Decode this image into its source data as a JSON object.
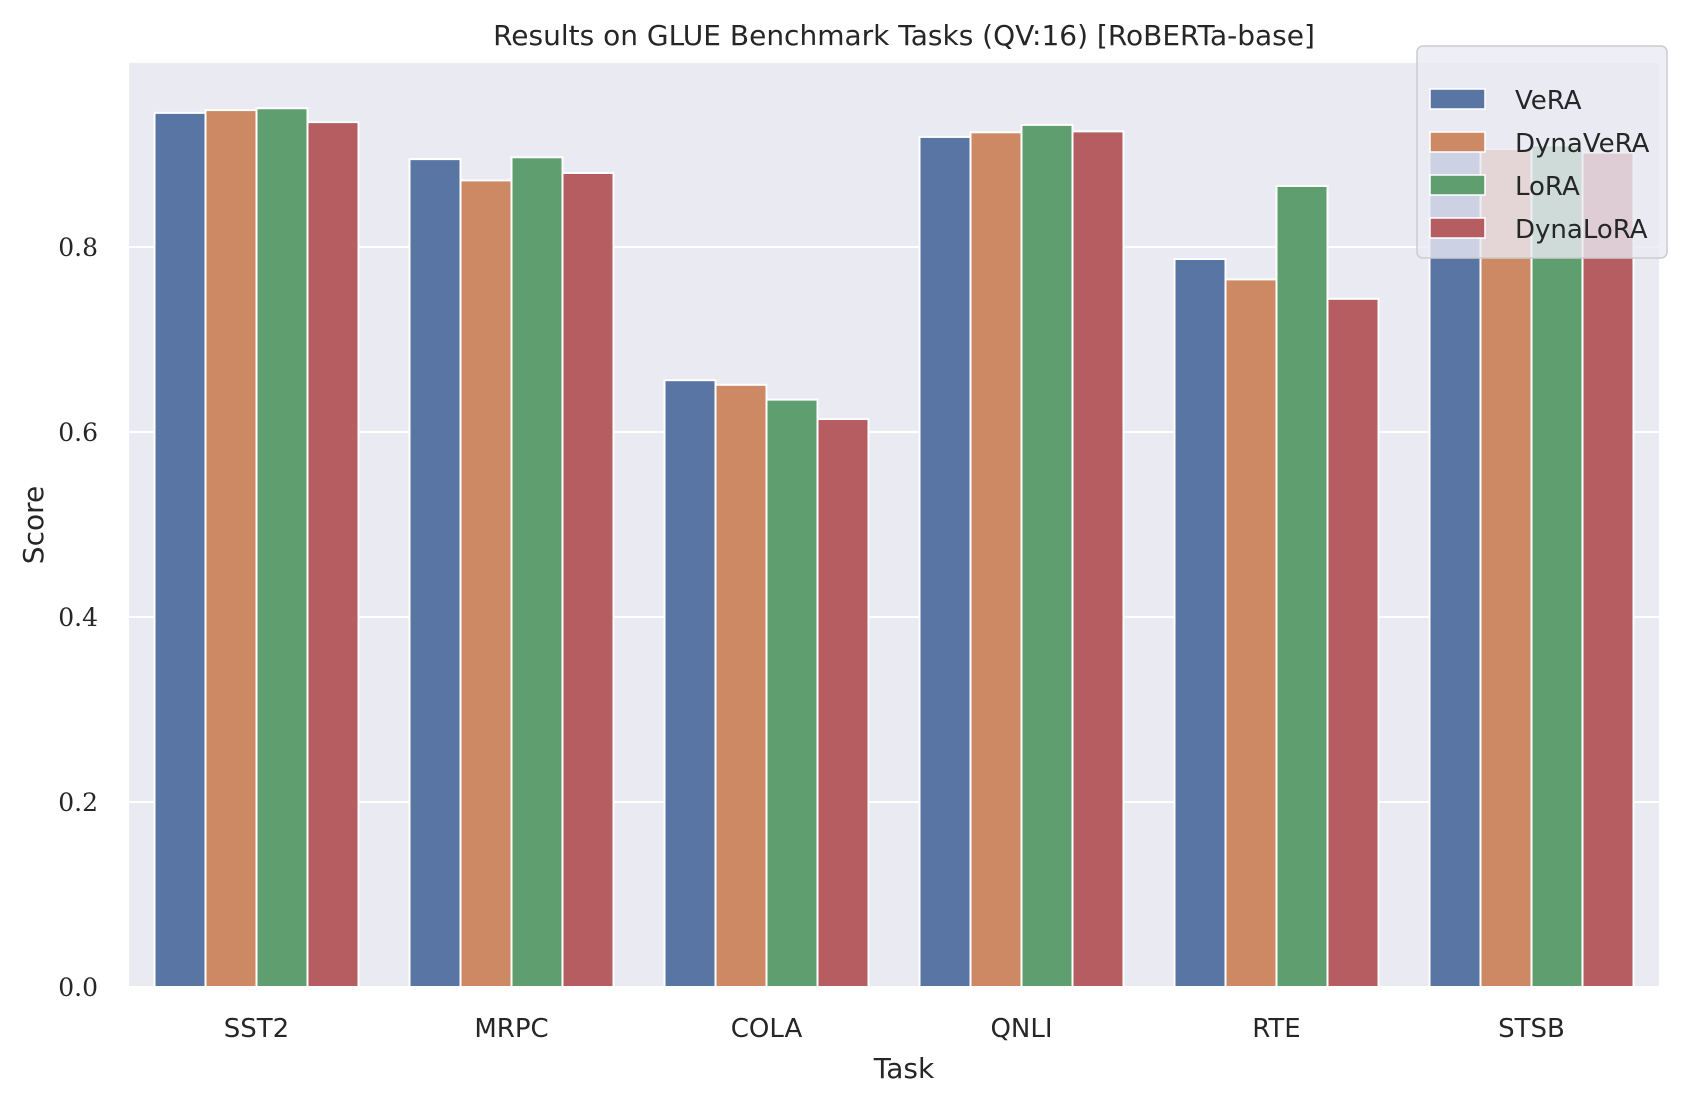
{
  "chart_data": {
    "type": "bar",
    "title": "Results on GLUE Benchmark Tasks (QV:16) [RoBERTa-base]",
    "xlabel": "Task",
    "ylabel": "Score",
    "ylim": [
      0,
      1.0
    ],
    "yticks": [
      0.0,
      0.2,
      0.4,
      0.6,
      0.8
    ],
    "ytick_labels": [
      "0.0",
      "0.2",
      "0.4",
      "0.6",
      "0.8"
    ],
    "grid": true,
    "legend_position": "top-right",
    "categories": [
      "SST2",
      "MRPC",
      "COLA",
      "QNLI",
      "RTE",
      "STSB"
    ],
    "series": [
      {
        "name": "VeRA",
        "color": "#5875a4",
        "values": [
          0.945,
          0.895,
          0.656,
          0.919,
          0.787,
          0.908
        ]
      },
      {
        "name": "DynaVeRA",
        "color": "#cc8963",
        "values": [
          0.948,
          0.872,
          0.651,
          0.924,
          0.765,
          0.906
        ]
      },
      {
        "name": "LoRA",
        "color": "#5f9e6e",
        "values": [
          0.95,
          0.897,
          0.635,
          0.932,
          0.866,
          0.91
        ]
      },
      {
        "name": "DynaLoRA",
        "color": "#b55d60",
        "values": [
          0.935,
          0.88,
          0.614,
          0.925,
          0.744,
          0.902
        ]
      }
    ]
  },
  "style": {
    "plot_background": "#eaeaf2",
    "grid_color": "#ffffff",
    "text_color": "#262626"
  }
}
